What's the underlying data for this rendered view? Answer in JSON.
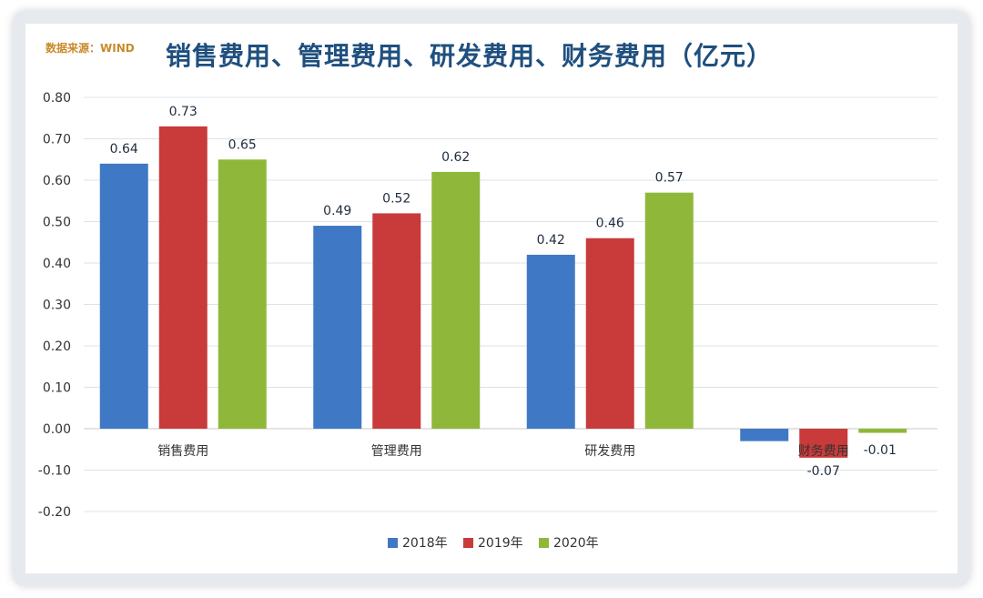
{
  "source": "数据来源：WIND",
  "chart_data": {
    "type": "bar",
    "title": "销售费用、管理费用、研发费用、财务费用（亿元）",
    "categories": [
      "销售费用",
      "管理费用",
      "研发费用",
      "财务费用"
    ],
    "series": [
      {
        "name": "2018年",
        "values": [
          0.64,
          0.49,
          0.42,
          -0.03
        ],
        "labels": [
          "0.64",
          "0.49",
          "0.42",
          ""
        ],
        "color": "#3f78c5"
      },
      {
        "name": "2019年",
        "values": [
          0.73,
          0.52,
          0.46,
          -0.07
        ],
        "labels": [
          "0.73",
          "0.52",
          "0.46",
          "-0.07"
        ],
        "color": "#c93a3a"
      },
      {
        "name": "2020年",
        "values": [
          0.65,
          0.62,
          0.57,
          -0.01
        ],
        "labels": [
          "0.65",
          "0.62",
          "0.57",
          "-0.01"
        ],
        "color": "#8fb83a"
      }
    ],
    "yticks": [
      "0.80",
      "0.70",
      "0.60",
      "0.50",
      "0.40",
      "0.30",
      "0.20",
      "0.10",
      "0.00",
      "-0.10",
      "-0.20"
    ],
    "ylim": [
      -0.2,
      0.8
    ],
    "grid": true,
    "legend_position": "bottom"
  }
}
